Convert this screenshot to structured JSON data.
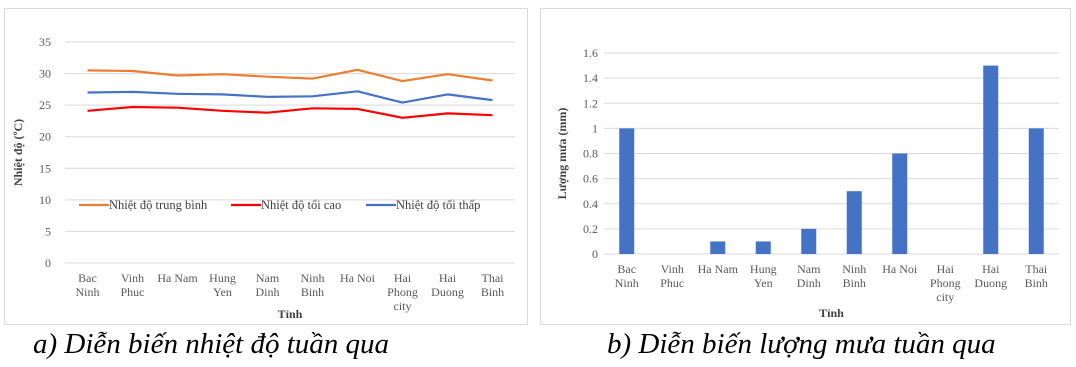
{
  "captions": {
    "a": "a) Diễn biến nhiệt độ tuần qua",
    "b": "b) Diễn biến lượng mưa tuần qua"
  },
  "chart_data": [
    {
      "type": "line",
      "xlabel": "Tỉnh",
      "ylabel": "Nhiệt độ (ºC)",
      "categories": [
        [
          "Bac",
          "Ninh"
        ],
        [
          "Vinh",
          "Phuc"
        ],
        [
          "Ha Nam"
        ],
        [
          "Hung",
          "Yen"
        ],
        [
          "Nam",
          "Dinh"
        ],
        [
          "Ninh",
          "Binh"
        ],
        [
          "Ha Noi"
        ],
        [
          "Hai",
          "Phong",
          "city"
        ],
        [
          "Hai",
          "Duong"
        ],
        [
          "Thai",
          "Binh"
        ]
      ],
      "ylim": [
        0,
        35
      ],
      "yticks": [
        0,
        5,
        10,
        15,
        20,
        25,
        30,
        35
      ],
      "grid": true,
      "legend_position": "inside-lower",
      "series": [
        {
          "name": "Nhiệt độ trung bình",
          "color": "#ED7D31",
          "values": [
            30.5,
            30.4,
            29.7,
            29.9,
            29.5,
            29.2,
            30.6,
            28.8,
            29.9,
            28.9
          ]
        },
        {
          "name": "Nhiệt độ tối cao",
          "color": "#FF0000",
          "values": [
            24.1,
            24.7,
            24.6,
            24.1,
            23.8,
            24.5,
            24.4,
            23.0,
            23.7,
            23.4
          ]
        },
        {
          "name": "Nhiệt độ tối thấp",
          "color": "#4472C4",
          "values": [
            27.0,
            27.1,
            26.8,
            26.7,
            26.3,
            26.4,
            27.2,
            25.4,
            26.7,
            25.8
          ]
        }
      ]
    },
    {
      "type": "bar",
      "xlabel": "Tỉnh",
      "ylabel": "Lượng mưa (mm)",
      "categories": [
        [
          "Bac",
          "Ninh"
        ],
        [
          "Vinh",
          "Phuc"
        ],
        [
          "Ha Nam"
        ],
        [
          "Hung",
          "Yen"
        ],
        [
          "Nam",
          "Dinh"
        ],
        [
          "Ninh",
          "Binh"
        ],
        [
          "Ha Noi"
        ],
        [
          "Hai",
          "Phong",
          "city"
        ],
        [
          "Hai",
          "Duong"
        ],
        [
          "Thai",
          "Binh"
        ]
      ],
      "values": [
        1,
        0,
        0.1,
        0.1,
        0.2,
        0.5,
        0.8,
        0,
        1.5,
        1
      ],
      "bar_color": "#4472C4",
      "ylim": [
        0,
        1.6
      ],
      "yticks": [
        "0",
        "0.2",
        "0.4",
        "0.6",
        "0.8",
        "1",
        "1.2",
        "1.4",
        "1.6"
      ],
      "grid": true
    }
  ]
}
